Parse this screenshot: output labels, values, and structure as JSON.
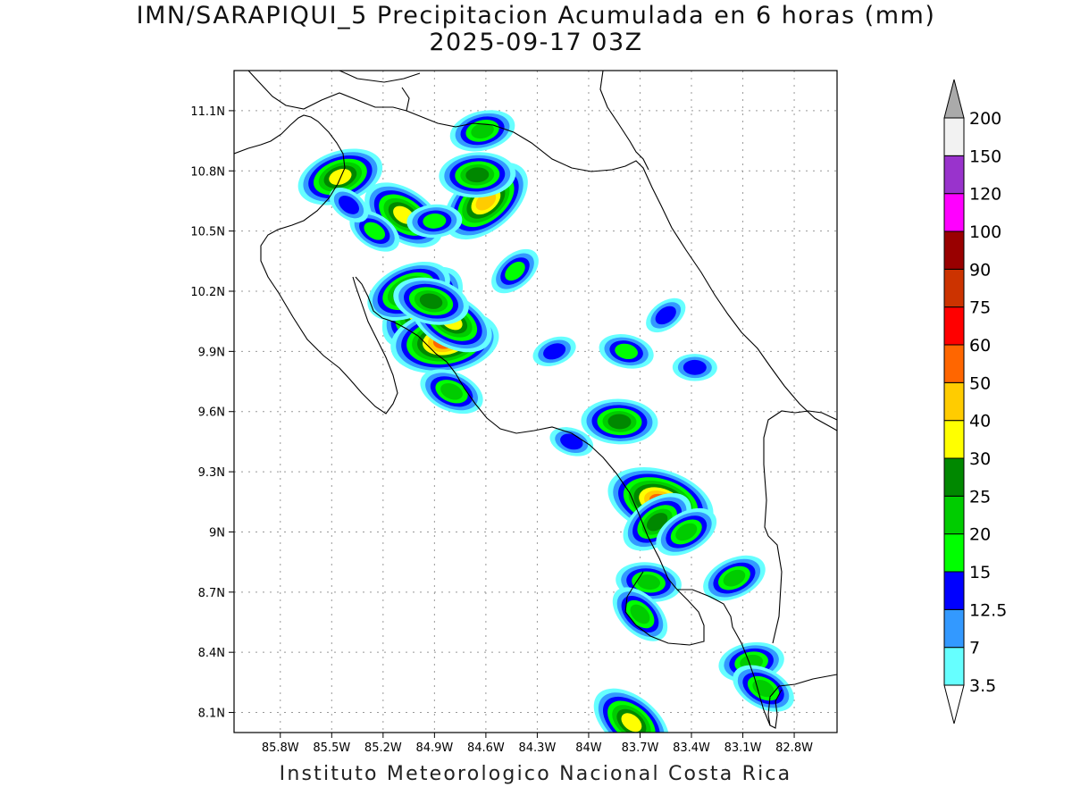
{
  "title": "IMN/SARAPIQUI_5 Precipitacion Acumulada en 6 horas (mm)",
  "subtitle": "2025-09-17 03Z",
  "footer": "Instituto Meteorologico Nacional Costa Rica",
  "map": {
    "lon_range": [
      -86.07,
      -82.55
    ],
    "lat_range": [
      8.0,
      11.3
    ],
    "x_ticks": [
      {
        "value": -85.8,
        "label": "85.8W"
      },
      {
        "value": -85.5,
        "label": "85.5W"
      },
      {
        "value": -85.2,
        "label": "85.2W"
      },
      {
        "value": -84.9,
        "label": "84.9W"
      },
      {
        "value": -84.6,
        "label": "84.6W"
      },
      {
        "value": -84.3,
        "label": "84.3W"
      },
      {
        "value": -84.0,
        "label": "84W"
      },
      {
        "value": -83.7,
        "label": "83.7W"
      },
      {
        "value": -83.4,
        "label": "83.4W"
      },
      {
        "value": -83.1,
        "label": "83.1W"
      },
      {
        "value": -82.8,
        "label": "82.8W"
      }
    ],
    "y_ticks": [
      {
        "value": 8.1,
        "label": "8.1N"
      },
      {
        "value": 8.4,
        "label": "8.4N"
      },
      {
        "value": 8.7,
        "label": "8.7N"
      },
      {
        "value": 9.0,
        "label": "9N"
      },
      {
        "value": 9.3,
        "label": "9.3N"
      },
      {
        "value": 9.6,
        "label": "9.6N"
      },
      {
        "value": 9.9,
        "label": "9.9N"
      },
      {
        "value": 10.2,
        "label": "10.2N"
      },
      {
        "value": 10.5,
        "label": "10.5N"
      },
      {
        "value": 10.8,
        "label": "10.8N"
      },
      {
        "value": 11.1,
        "label": "11.1N"
      }
    ],
    "grid": true
  },
  "colorbar": {
    "levels": [
      "3.5",
      "7",
      "12.5",
      "15",
      "20",
      "25",
      "30",
      "40",
      "50",
      "60",
      "75",
      "90",
      "100",
      "120",
      "150",
      "200"
    ],
    "colors": [
      "#ffffff",
      "#66ffff",
      "#3399ff",
      "#0000ff",
      "#00ff00",
      "#00cc00",
      "#008800",
      "#ffff00",
      "#ffcc00",
      "#ff6600",
      "#ff0000",
      "#cc3300",
      "#990000",
      "#ff00ff",
      "#9933cc",
      "#f2f2f2",
      "#aaaaaa"
    ]
  },
  "precip_cells": [
    {
      "lon": -84.97,
      "lat": 10.12,
      "level": 8
    },
    {
      "lon": -84.84,
      "lat": 9.95,
      "level": 9
    },
    {
      "lon": -84.8,
      "lat": 10.05,
      "level": 7
    },
    {
      "lon": -85.05,
      "lat": 10.2,
      "level": 7
    },
    {
      "lon": -84.92,
      "lat": 10.15,
      "level": 6
    },
    {
      "lon": -84.6,
      "lat": 10.65,
      "level": 8
    },
    {
      "lon": -84.65,
      "lat": 10.78,
      "level": 6
    },
    {
      "lon": -85.08,
      "lat": 10.58,
      "level": 7
    },
    {
      "lon": -85.45,
      "lat": 10.77,
      "level": 7
    },
    {
      "lon": -83.58,
      "lat": 9.15,
      "level": 9
    },
    {
      "lon": -83.6,
      "lat": 9.05,
      "level": 6
    },
    {
      "lon": -83.82,
      "lat": 9.55,
      "level": 6
    },
    {
      "lon": -83.75,
      "lat": 8.05,
      "level": 7
    },
    {
      "lon": -84.62,
      "lat": 11.0,
      "level": 5
    },
    {
      "lon": -84.8,
      "lat": 9.7,
      "level": 5
    },
    {
      "lon": -83.43,
      "lat": 9.0,
      "level": 5
    },
    {
      "lon": -83.65,
      "lat": 8.75,
      "level": 5
    },
    {
      "lon": -83.7,
      "lat": 8.59,
      "level": 5
    },
    {
      "lon": -83.05,
      "lat": 8.35,
      "level": 5
    },
    {
      "lon": -82.98,
      "lat": 8.22,
      "level": 5
    },
    {
      "lon": -83.15,
      "lat": 8.77,
      "level": 5
    },
    {
      "lon": -83.78,
      "lat": 9.9,
      "level": 4
    },
    {
      "lon": -84.43,
      "lat": 10.3,
      "level": 4
    },
    {
      "lon": -84.9,
      "lat": 10.55,
      "level": 4
    },
    {
      "lon": -85.25,
      "lat": 10.5,
      "level": 4
    },
    {
      "lon": -84.2,
      "lat": 9.9,
      "level": 3
    },
    {
      "lon": -84.1,
      "lat": 9.45,
      "level": 3
    },
    {
      "lon": -83.55,
      "lat": 10.08,
      "level": 3
    },
    {
      "lon": -83.38,
      "lat": 9.82,
      "level": 3
    },
    {
      "lon": -85.4,
      "lat": 10.63,
      "level": 3
    }
  ]
}
